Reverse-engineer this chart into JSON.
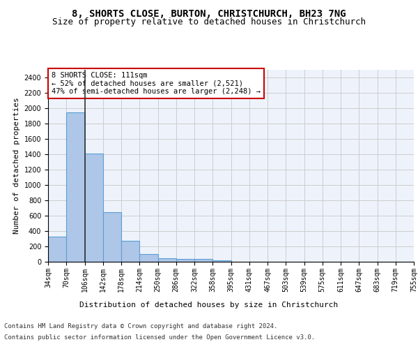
{
  "title": "8, SHORTS CLOSE, BURTON, CHRISTCHURCH, BH23 7NG",
  "subtitle": "Size of property relative to detached houses in Christchurch",
  "xlabel": "Distribution of detached houses by size in Christchurch",
  "ylabel": "Number of detached properties",
  "bar_values": [
    325,
    1950,
    1410,
    650,
    270,
    100,
    48,
    38,
    35,
    22,
    0,
    0,
    0,
    0,
    0,
    0,
    0,
    0,
    0,
    0
  ],
  "bar_labels": [
    "34sqm",
    "70sqm",
    "106sqm",
    "142sqm",
    "178sqm",
    "214sqm",
    "250sqm",
    "286sqm",
    "322sqm",
    "358sqm",
    "395sqm",
    "431sqm",
    "467sqm",
    "503sqm",
    "539sqm",
    "575sqm",
    "611sqm",
    "647sqm",
    "683sqm",
    "719sqm",
    "755sqm"
  ],
  "bar_color": "#aec6e8",
  "bar_edge_color": "#5a9fd4",
  "vline_x": 2,
  "vline_color": "#333333",
  "annotation_text": "8 SHORTS CLOSE: 111sqm\n← 52% of detached houses are smaller (2,521)\n47% of semi-detached houses are larger (2,248) →",
  "annotation_box_color": "#ffffff",
  "annotation_box_edge": "#cc0000",
  "ylim": [
    0,
    2500
  ],
  "yticks": [
    0,
    200,
    400,
    600,
    800,
    1000,
    1200,
    1400,
    1600,
    1800,
    2000,
    2200,
    2400
  ],
  "grid_color": "#cccccc",
  "background_color": "#eef3fb",
  "footer_line1": "Contains HM Land Registry data © Crown copyright and database right 2024.",
  "footer_line2": "Contains public sector information licensed under the Open Government Licence v3.0.",
  "title_fontsize": 10,
  "subtitle_fontsize": 9,
  "tick_fontsize": 7,
  "label_fontsize": 8,
  "annotation_fontsize": 7.5,
  "footer_fontsize": 6.5
}
